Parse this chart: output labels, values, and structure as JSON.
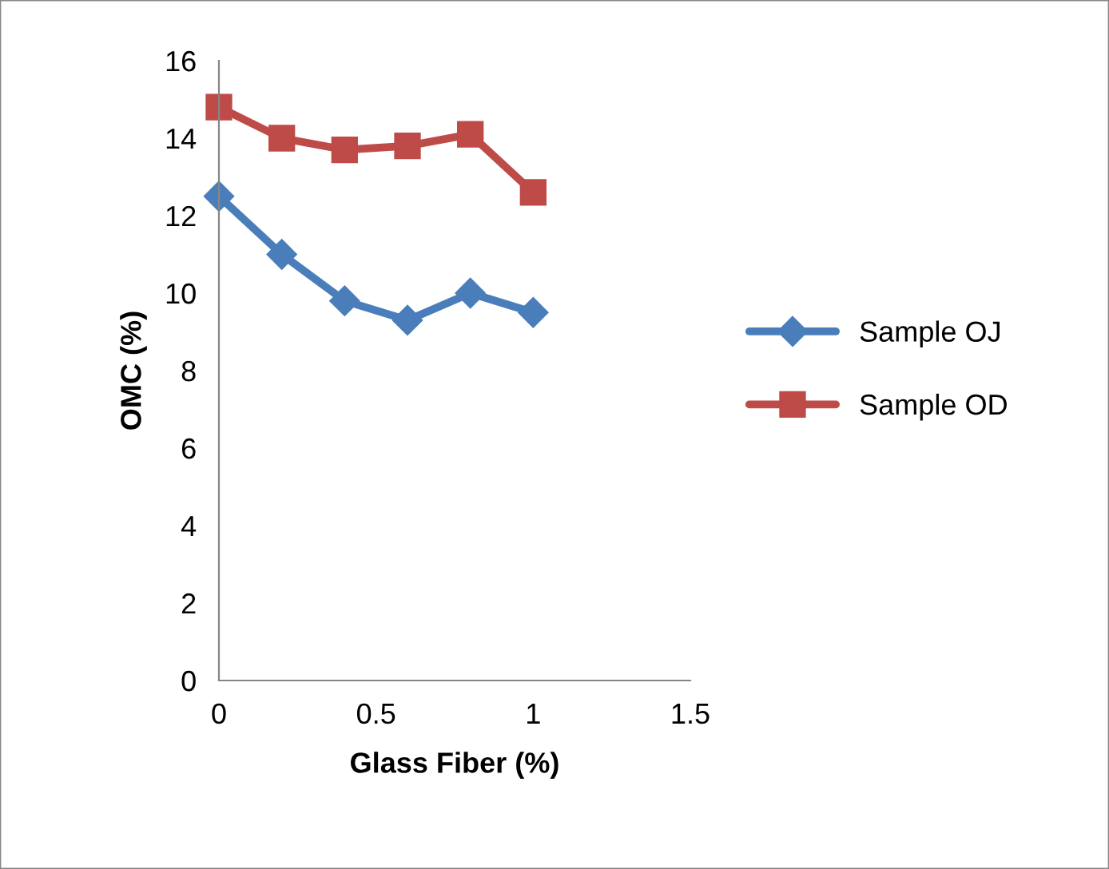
{
  "chart_data": {
    "type": "line",
    "xlabel": "Glass Fiber (%)",
    "ylabel": "OMC (%)",
    "x": [
      0,
      0.2,
      0.4,
      0.6,
      0.8,
      1
    ],
    "series": [
      {
        "name": "Sample OJ",
        "color": "#4a7ebb",
        "marker": "diamond",
        "values": [
          12.5,
          11.0,
          9.8,
          9.3,
          10.0,
          9.5
        ]
      },
      {
        "name": "Sample OD",
        "color": "#be4b48",
        "marker": "square",
        "values": [
          14.8,
          14.0,
          13.7,
          13.8,
          14.1,
          12.6
        ]
      }
    ],
    "xlim": [
      0,
      1.5
    ],
    "xticks": [
      0,
      0.5,
      1,
      1.5
    ],
    "ylim": [
      0,
      16
    ],
    "yticks": [
      0,
      2,
      4,
      6,
      8,
      10,
      12,
      14,
      16
    ],
    "grid": false,
    "legend": "right",
    "line_style": "solid"
  }
}
